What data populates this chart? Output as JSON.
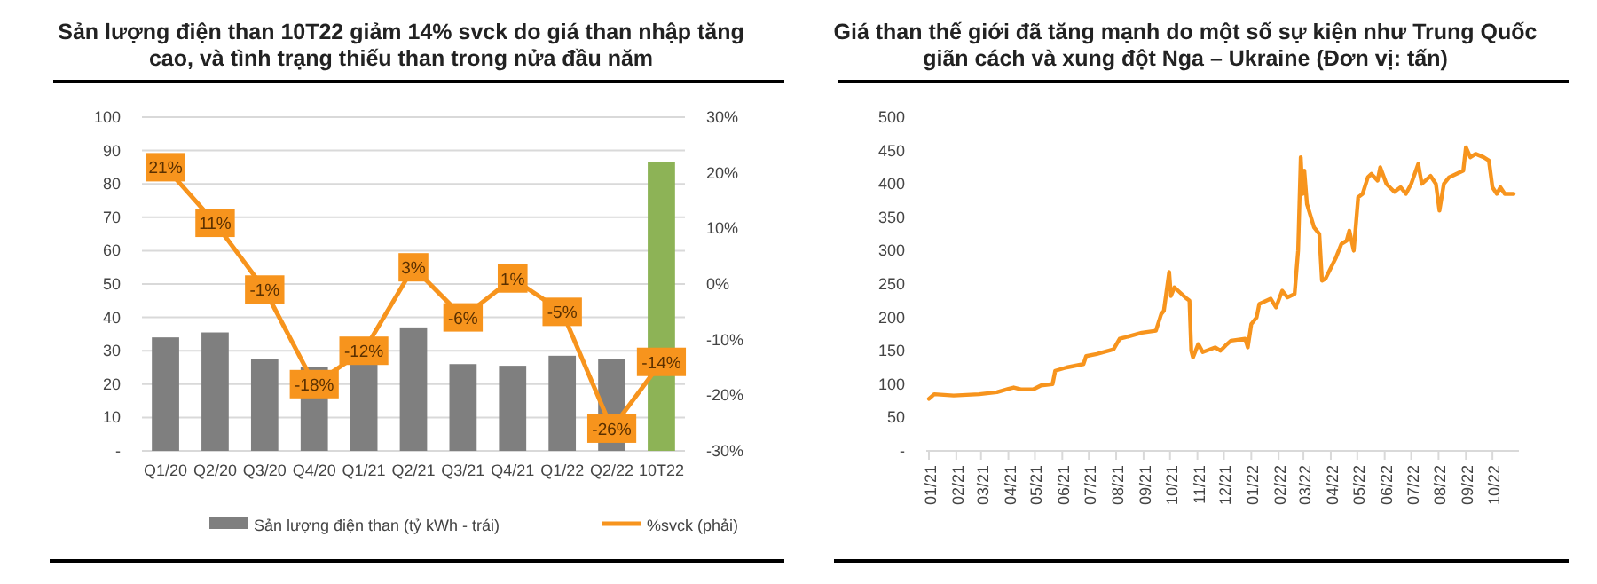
{
  "chart_data": [
    {
      "type": "bar",
      "title": "Sản lượng điện than 10T22 giảm 14% svck do giá than nhập tăng cao, và tình trạng thiếu than trong nửa đầu năm",
      "categories": [
        "Q1/20",
        "Q2/20",
        "Q3/20",
        "Q4/20",
        "Q1/21",
        "Q2/21",
        "Q3/21",
        "Q4/21",
        "Q1/22",
        "Q2/22",
        "10T22"
      ],
      "series": [
        {
          "name": "Sản lượng điện than (tỷ kWh - trái)",
          "color": "#7f7f7f",
          "colors": [
            "#7f7f7f",
            "#7f7f7f",
            "#7f7f7f",
            "#7f7f7f",
            "#7f7f7f",
            "#7f7f7f",
            "#7f7f7f",
            "#7f7f7f",
            "#7f7f7f",
            "#7f7f7f",
            "#8db356"
          ],
          "values": [
            34,
            35.5,
            27.5,
            25,
            26,
            37,
            26,
            25.5,
            28.5,
            27.5,
            86.5
          ]
        },
        {
          "name": "%svck (phải)",
          "type": "line",
          "axis": "y2",
          "marker": "square",
          "color": "#f7941d",
          "values": [
            21,
            11,
            -1,
            -18,
            -12,
            3,
            -6,
            1,
            -5,
            -26,
            -14
          ],
          "value_labels": [
            "21%",
            "11%",
            "-1%",
            "-18%",
            "-12%",
            "3%",
            "-6%",
            "1%",
            "-5%",
            "-26%",
            "-14%"
          ]
        }
      ],
      "ylim": [
        0,
        100
      ],
      "yticks": [
        {
          "value": 0,
          "label": "-"
        },
        10,
        20,
        30,
        40,
        50,
        60,
        70,
        80,
        90,
        100
      ],
      "y2lim": [
        -30,
        30
      ],
      "y2ticks": [
        {
          "value": -30,
          "label": "-30%"
        },
        {
          "value": -20,
          "label": "-20%"
        },
        {
          "value": -10,
          "label": "-10%"
        },
        {
          "value": 0,
          "label": "0%"
        },
        {
          "value": 10,
          "label": "10%"
        },
        {
          "value": 20,
          "label": "20%"
        },
        {
          "value": 30,
          "label": "30%"
        }
      ],
      "grid": "y",
      "legend": "bottom"
    },
    {
      "type": "line",
      "title": "Giá than thế giới đã tăng mạnh do một số sự kiện như Trung Quốc giãn cách và xung đột Nga – Ukraine (Đơn vị: tấn)",
      "x": [
        "2021-01-01",
        "2021-01-07",
        "2021-01-29",
        "2021-02-27",
        "2021-03-19",
        "2021-04-01",
        "2021-04-07",
        "2021-04-16",
        "2021-04-29",
        "2021-05-08",
        "2021-05-21",
        "2021-05-24",
        "2021-06-06",
        "2021-06-25",
        "2021-06-28",
        "2021-07-10",
        "2021-07-29",
        "2021-08-05",
        "2021-08-11",
        "2021-08-30",
        "2021-09-15",
        "2021-09-21",
        "2021-09-24",
        "2021-09-30",
        "2021-10-02",
        "2021-10-06",
        "2021-10-10",
        "2021-10-20",
        "2021-10-23",
        "2021-10-25",
        "2021-10-27",
        "2021-11-02",
        "2021-11-07",
        "2021-11-21",
        "2021-11-27",
        "2021-12-03",
        "2021-12-09",
        "2021-12-25",
        "2021-12-28",
        "2022-01-01",
        "2022-01-07",
        "2022-01-10",
        "2022-01-23",
        "2022-01-29",
        "2022-02-05",
        "2022-02-11",
        "2022-02-19",
        "2022-02-23",
        "2022-02-26",
        "2022-02-28",
        "2022-03-02",
        "2022-03-05",
        "2022-03-13",
        "2022-03-19",
        "2022-03-22",
        "2022-03-26",
        "2022-04-07",
        "2022-04-13",
        "2022-04-19",
        "2022-04-22",
        "2022-04-27",
        "2022-05-02",
        "2022-05-07",
        "2022-05-13",
        "2022-05-17",
        "2022-05-24",
        "2022-05-27",
        "2022-06-03",
        "2022-06-12",
        "2022-06-19",
        "2022-06-25",
        "2022-07-01",
        "2022-07-09",
        "2022-07-13",
        "2022-07-23",
        "2022-07-29",
        "2022-08-02",
        "2022-08-07",
        "2022-08-13",
        "2022-08-21",
        "2022-08-29",
        "2022-09-01",
        "2022-09-06",
        "2022-09-12",
        "2022-09-21",
        "2022-09-27",
        "2022-10-01",
        "2022-10-06",
        "2022-10-10",
        "2022-10-15",
        "2022-10-25"
      ],
      "series": [
        {
          "color": "#f7941d",
          "values": [
            78,
            85,
            83,
            85,
            88,
            93,
            95,
            92,
            92,
            98,
            100,
            120,
            125,
            130,
            142,
            145,
            152,
            168,
            170,
            177,
            180,
            205,
            210,
            268,
            232,
            245,
            240,
            228,
            225,
            150,
            140,
            160,
            148,
            155,
            150,
            158,
            165,
            168,
            155,
            190,
            200,
            220,
            228,
            215,
            240,
            230,
            235,
            300,
            440,
            385,
            420,
            370,
            335,
            325,
            255,
            258,
            290,
            310,
            315,
            330,
            300,
            380,
            385,
            410,
            415,
            405,
            425,
            400,
            388,
            395,
            385,
            400,
            430,
            400,
            412,
            400,
            360,
            400,
            410,
            415,
            420,
            455,
            440,
            445,
            440,
            435,
            395,
            385,
            395,
            385,
            385
          ]
        }
      ],
      "xlim": [
        "2020-12-29",
        "2022-10-31"
      ],
      "xticks": [
        {
          "value": "2021-01-01",
          "label": "01/21"
        },
        {
          "value": "2021-02-01",
          "label": "02/21"
        },
        {
          "value": "2021-03-01",
          "label": "03/21"
        },
        {
          "value": "2021-04-01",
          "label": "04/21"
        },
        {
          "value": "2021-05-01",
          "label": "05/21"
        },
        {
          "value": "2021-06-01",
          "label": "06/21"
        },
        {
          "value": "2021-07-01",
          "label": "07/21"
        },
        {
          "value": "2021-08-01",
          "label": "08/21"
        },
        {
          "value": "2021-09-01",
          "label": "09/21"
        },
        {
          "value": "2021-10-01",
          "label": "10/21"
        },
        {
          "value": "2021-11-01",
          "label": "11/21"
        },
        {
          "value": "2021-12-01",
          "label": "12/21"
        },
        {
          "value": "2022-01-01",
          "label": "01/22"
        },
        {
          "value": "2022-02-01",
          "label": "02/22"
        },
        {
          "value": "2022-03-01",
          "label": "03/22"
        },
        {
          "value": "2022-04-01",
          "label": "04/22"
        },
        {
          "value": "2022-05-01",
          "label": "05/22"
        },
        {
          "value": "2022-06-01",
          "label": "06/22"
        },
        {
          "value": "2022-07-01",
          "label": "07/22"
        },
        {
          "value": "2022-08-01",
          "label": "08/22"
        },
        {
          "value": "2022-09-01",
          "label": "09/22"
        },
        {
          "value": "2022-10-01",
          "label": "10/22"
        }
      ],
      "ylim": [
        0,
        500
      ],
      "yticks": [
        {
          "value": 0,
          "label": "-"
        },
        50,
        100,
        150,
        200,
        250,
        300,
        350,
        400,
        450,
        500
      ],
      "grid": false,
      "legend": false
    }
  ]
}
